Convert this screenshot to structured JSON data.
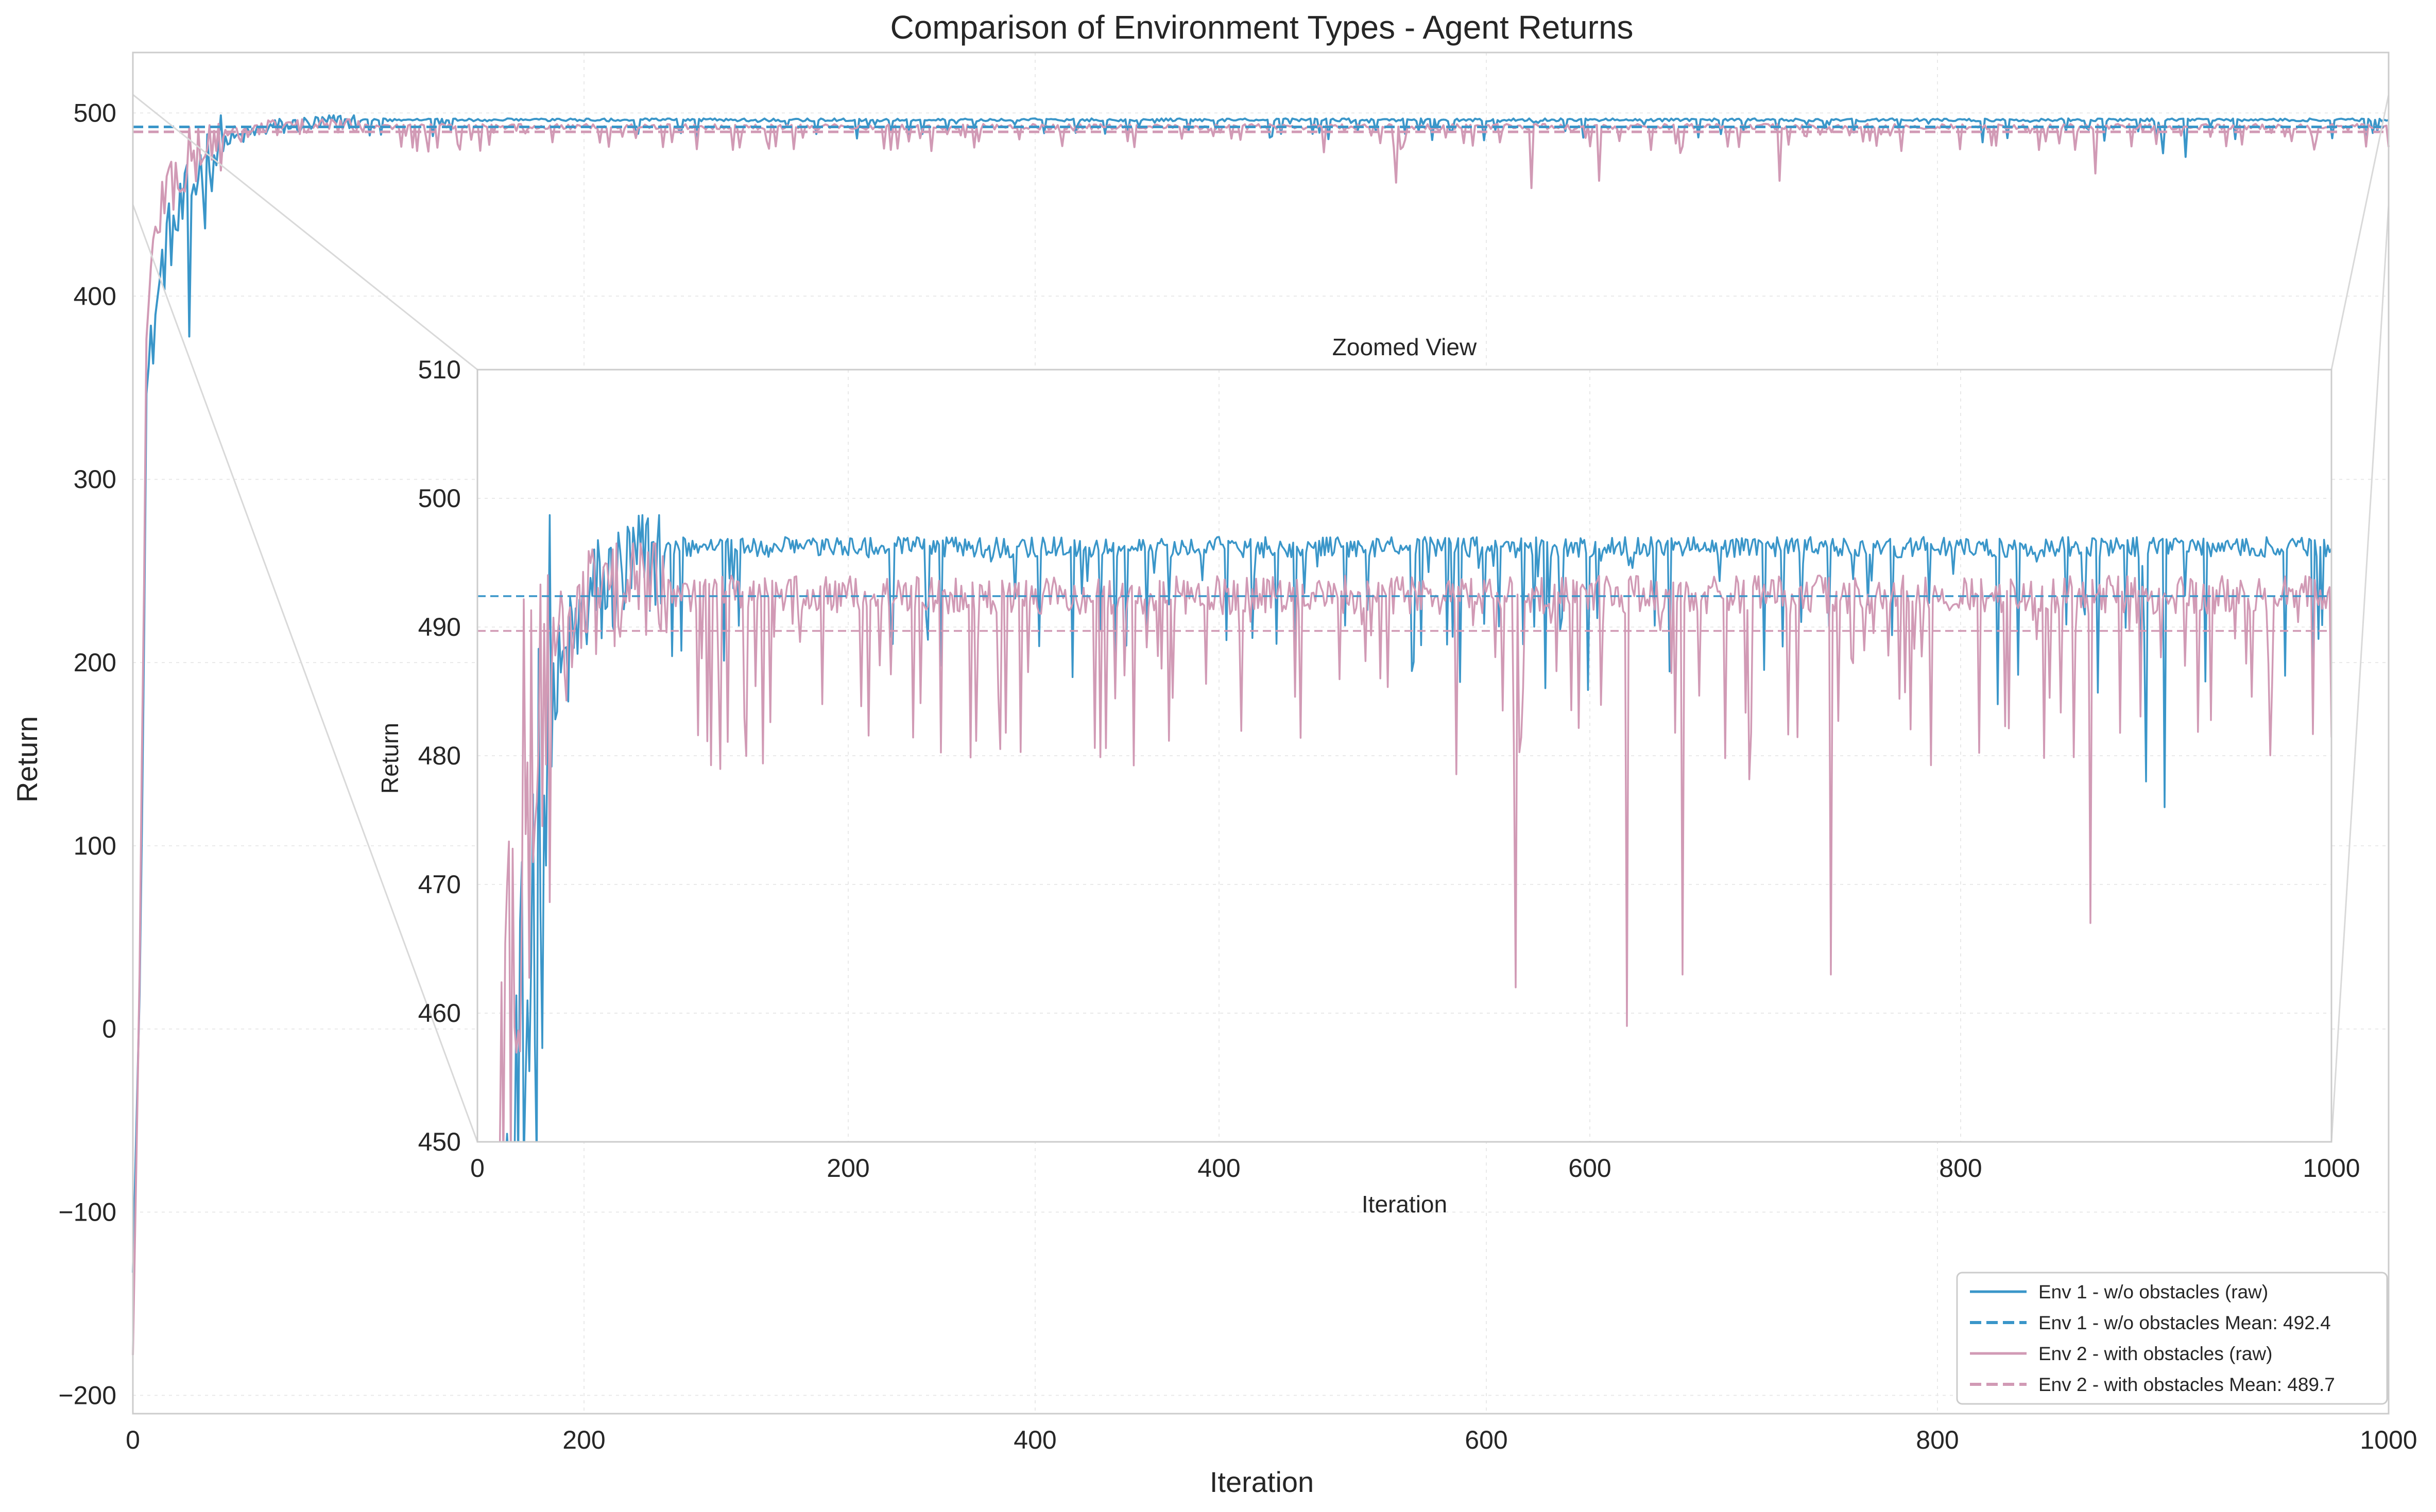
{
  "chart_data": [
    {
      "type": "line",
      "title": "Comparison of Environment Types - Agent Returns",
      "xlabel": "Iteration",
      "ylabel": "Return",
      "xlim": [
        0,
        1000
      ],
      "ylim": [
        -210,
        533
      ],
      "xticks": [
        0,
        200,
        400,
        600,
        800,
        1000
      ],
      "yticks": [
        -200,
        -100,
        0,
        100,
        200,
        300,
        400,
        500
      ],
      "grid": true,
      "legend_position": "bottom-right",
      "series": [
        {
          "name": "Env 1 - w/o obstacles (raw)",
          "style": "solid",
          "color": "#3a96c9",
          "summary": {
            "start": -133,
            "early_x": [
              0,
              3,
              6,
              10,
              15,
              20,
              30,
              40,
              60,
              100
            ],
            "early_y": [
              -133,
              20,
              345,
              390,
              430,
              440,
              470,
              484,
              492,
              496
            ],
            "plateau_level": 497,
            "dips": [
              [
                25,
                378
              ],
              [
                32,
                437
              ],
              [
                250,
                487
              ],
              [
                820,
                484
              ],
              [
                900,
                478
              ],
              [
                910,
                476
              ],
              [
                990,
                485
              ]
            ]
          }
        },
        {
          "name": "Env 1 - w/o obstacles Mean: 492.4",
          "style": "dashed",
          "color": "#3a96c9",
          "values": [
            492.4
          ]
        },
        {
          "name": "Env 2 - with obstacles (raw)",
          "style": "solid",
          "color": "#d19ab5",
          "summary": {
            "start": -178,
            "early_x": [
              0,
              3,
              6,
              10,
              15,
              20,
              30,
              40,
              60,
              100
            ],
            "early_y": [
              -178,
              30,
              370,
              440,
              460,
              465,
              480,
              487,
              492,
              494
            ],
            "plateau_level": 494,
            "dips": [
              [
                560,
                462
              ],
              [
                620,
                459
              ],
              [
                650,
                463
              ],
              [
                730,
                463
              ],
              [
                870,
                467
              ]
            ]
          }
        },
        {
          "name": "Env 2 - with obstacles Mean: 489.7",
          "style": "dashed",
          "color": "#d19ab5",
          "values": [
            489.7
          ]
        }
      ]
    },
    {
      "type": "line",
      "title": "Zoomed View",
      "xlabel": "Iteration",
      "ylabel": "Return",
      "xlim": [
        0,
        1000
      ],
      "ylim": [
        450,
        510
      ],
      "xticks": [
        0,
        200,
        400,
        600,
        800,
        1000
      ],
      "yticks": [
        450,
        460,
        470,
        480,
        490,
        500,
        510
      ],
      "grid": true
    }
  ],
  "colors": {
    "env1": "#3a96c9",
    "env2": "#d19ab5",
    "axes_frame": "#cccccc",
    "grid": "#e9e9e9",
    "text": "#262626"
  }
}
